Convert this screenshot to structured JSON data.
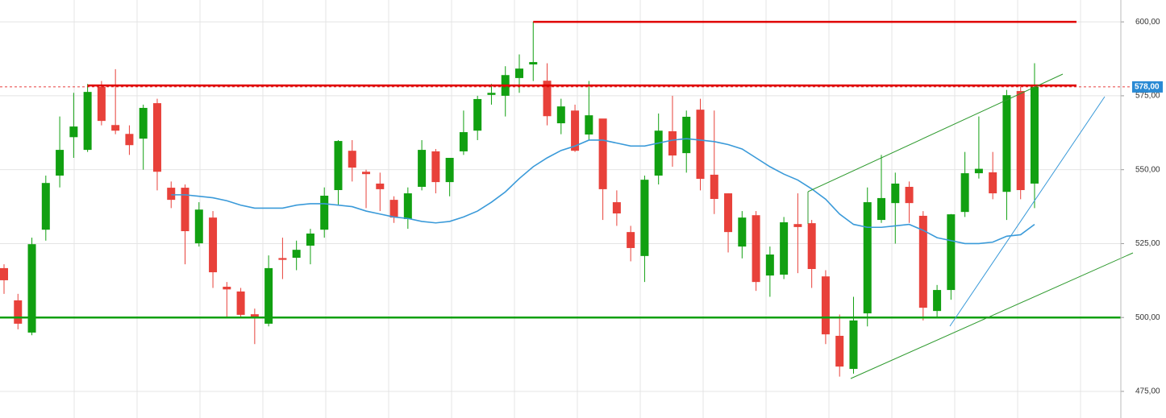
{
  "chart_data": {
    "type": "candlestick",
    "up_color": "#11a011",
    "down_color": "#e8413a",
    "open": [
      516.7,
      505.8,
      494.9,
      529.7,
      548,
      561,
      556.7,
      578,
      565.1,
      562.1,
      560.5,
      572.5,
      543.9,
      543.9,
      525.1,
      533.8,
      510.4,
      508.8,
      501.1,
      497.9,
      520.1,
      520.2,
      524.3,
      529.7,
      543.1,
      556.4,
      549.3,
      545.3,
      539.8,
      533.3,
      544.2,
      556.2,
      545.8,
      556.2,
      563.2,
      575.3,
      575,
      581,
      585.6,
      580.1,
      565.7,
      570,
      561.9,
      567.3,
      539,
      528.9,
      520.8,
      548,
      563,
      555.6,
      570.3,
      548.3,
      542,
      524,
      534.6,
      514.2,
      514.5,
      531.6,
      531.9,
      513.9,
      493.8,
      482.6,
      501.4,
      533,
      538.7,
      544.2,
      534.4,
      502.2,
      509.3,
      535.7,
      548.8,
      549.1,
      542.5,
      576.6,
      545.3
    ],
    "high": [
      518,
      508,
      527,
      548,
      568,
      576,
      579,
      580,
      584,
      565,
      572,
      574,
      546,
      545,
      539,
      536,
      512,
      510,
      503,
      521,
      527,
      526,
      530,
      544,
      560,
      560,
      550,
      549,
      541,
      544,
      560,
      557,
      554,
      570,
      575,
      579,
      585,
      589,
      600,
      586,
      574,
      572,
      580,
      567,
      543,
      531,
      548,
      569,
      575,
      570,
      574,
      570,
      542,
      536,
      536,
      524,
      534,
      542,
      533,
      516,
      501,
      507,
      544,
      555,
      549,
      546,
      536,
      511,
      535,
      556,
      568,
      556,
      577,
      578,
      586
    ],
    "low": [
      508,
      496,
      494,
      526,
      544,
      554,
      556,
      565,
      562,
      555,
      550,
      543,
      537,
      518,
      524,
      510,
      500,
      500,
      491,
      497,
      513,
      516,
      518,
      527,
      538,
      546,
      537,
      536,
      532,
      530,
      543,
      542,
      541,
      555,
      560,
      572,
      568,
      576,
      580,
      565,
      562,
      556,
      560,
      533,
      531,
      519,
      512,
      545,
      551,
      549,
      543,
      535,
      522,
      520,
      509,
      507,
      513,
      515,
      510,
      491,
      480,
      481,
      497,
      532,
      525,
      532,
      499,
      500,
      506,
      534,
      547,
      540,
      533,
      540,
      537
    ],
    "close": [
      512.6,
      497.9,
      524.8,
      545.5,
      556.7,
      564.6,
      576.3,
      566.5,
      563.2,
      558.3,
      570.9,
      549.3,
      539.8,
      529.2,
      536.5,
      515.3,
      509.5,
      500.9,
      499.8,
      516.7,
      519.5,
      522.9,
      528.4,
      541.2,
      559.7,
      550.7,
      548.5,
      543.4,
      533.8,
      542,
      556.7,
      545.8,
      554,
      562.7,
      573.9,
      576,
      582,
      584.2,
      586.4,
      568.1,
      571.4,
      556.4,
      568.4,
      543.4,
      535.2,
      523.5,
      546.6,
      563.2,
      554.8,
      567.9,
      546.9,
      540.1,
      528.9,
      533.8,
      512,
      521.3,
      532.2,
      530.6,
      516.4,
      494.3,
      483.4,
      499,
      539,
      540.4,
      545.3,
      538.7,
      503.3,
      509.3,
      534.9,
      548.8,
      550.3,
      542,
      575.2,
      543.1,
      578
    ],
    "moving_average": {
      "color": "#3a9ad9",
      "values": [
        null,
        null,
        null,
        null,
        null,
        null,
        null,
        null,
        null,
        null,
        null,
        null,
        541.5,
        541.5,
        541,
        540.5,
        539.5,
        538,
        537,
        537,
        537,
        538,
        538.5,
        538.5,
        538,
        537.5,
        536,
        535,
        534,
        533.5,
        532.5,
        532,
        532.5,
        534,
        536,
        539,
        542.5,
        547,
        551,
        554,
        556.5,
        558,
        560,
        560,
        559,
        558,
        558,
        559,
        560,
        560.5,
        560,
        559.5,
        558.5,
        557,
        554,
        551,
        548.5,
        546.5,
        543.5,
        540,
        535,
        531.5,
        530.5,
        530.5,
        531,
        531.5,
        529.5,
        527,
        526,
        525,
        525,
        525.5,
        527.5,
        528,
        531.5
      ]
    },
    "levels": [
      {
        "value": 600,
        "color": "#e00000",
        "start": 38
      },
      {
        "value": 578.5,
        "color": "#e00000",
        "start": 6
      },
      {
        "value": 500,
        "color": "#11a011",
        "start": 0
      }
    ],
    "last_price": {
      "value": 578,
      "label": "578,00",
      "color": "#2a8ad4"
    },
    "ylim": [
      466,
      607.4
    ],
    "yticks": [
      {
        "value": 475,
        "label": "475,00"
      },
      {
        "value": 500,
        "label": "500,00"
      },
      {
        "value": 525,
        "label": "525,00"
      },
      {
        "value": 550,
        "label": "550,00"
      },
      {
        "value": 575,
        "label": "575,00"
      },
      {
        "value": 600,
        "label": "600,00"
      }
    ],
    "grid": true
  }
}
